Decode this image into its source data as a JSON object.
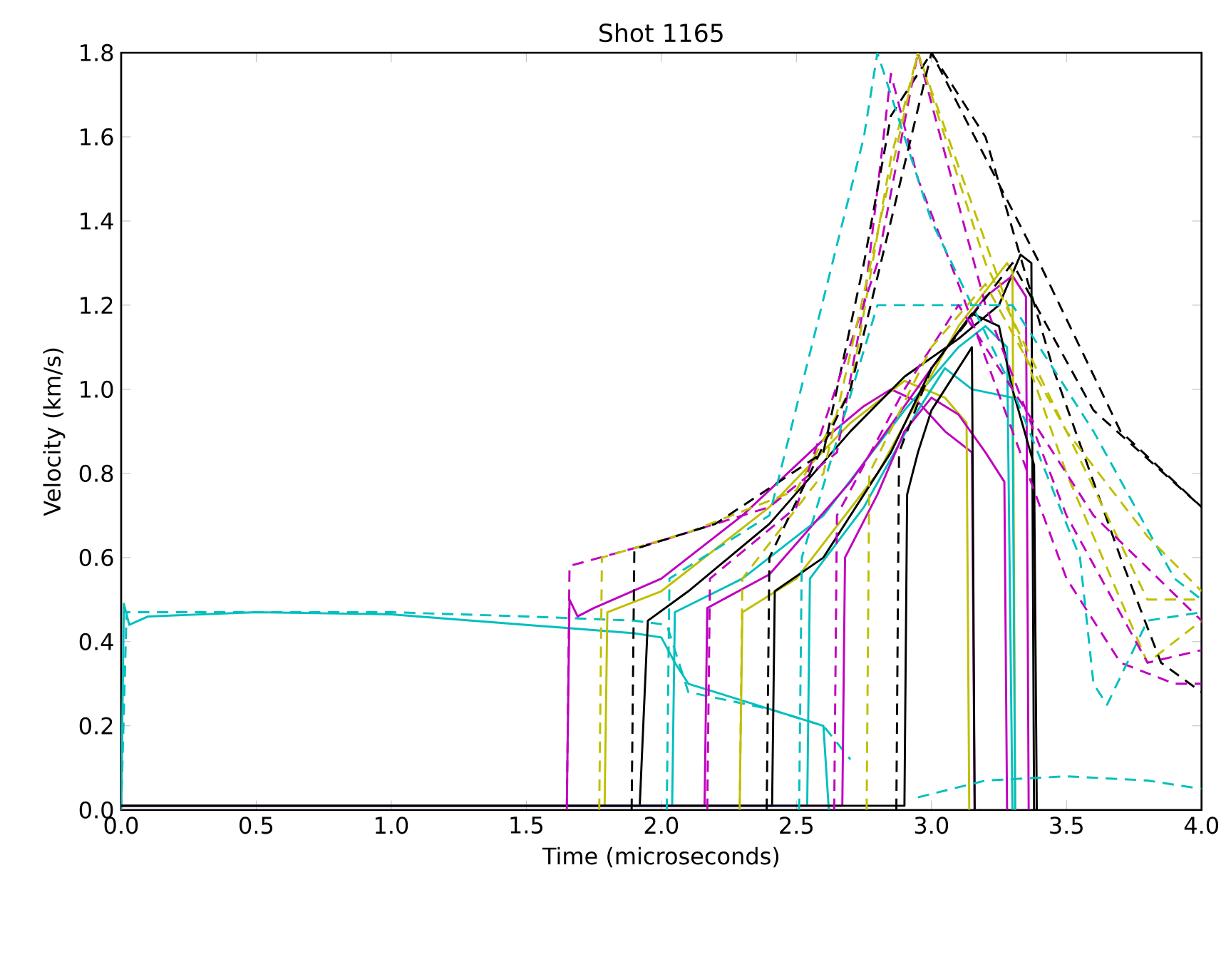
{
  "chart_data": {
    "type": "line",
    "title": "Shot 1165",
    "xlabel": "Time (microseconds)",
    "ylabel": "Velocity (km/s)",
    "xlim": [
      0,
      4
    ],
    "ylim": [
      0,
      1.8
    ],
    "xticks": [
      {
        "value": 0,
        "label": "0.0"
      },
      {
        "value": 0.5,
        "label": "0.5"
      },
      {
        "value": 1,
        "label": "1.0"
      },
      {
        "value": 1.5,
        "label": "1.5"
      },
      {
        "value": 2,
        "label": "2.0"
      },
      {
        "value": 2.5,
        "label": "2.5"
      },
      {
        "value": 3,
        "label": "3.0"
      },
      {
        "value": 3.5,
        "label": "3.5"
      },
      {
        "value": 4,
        "label": "4.0"
      }
    ],
    "yticks": [
      {
        "value": 0,
        "label": "0.0"
      },
      {
        "value": 0.2,
        "label": "0.2"
      },
      {
        "value": 0.4,
        "label": "0.4"
      },
      {
        "value": 0.6,
        "label": "0.6"
      },
      {
        "value": 0.8,
        "label": "0.8"
      },
      {
        "value": 1,
        "label": "1.0"
      },
      {
        "value": 1.2,
        "label": "1.2"
      },
      {
        "value": 1.4,
        "label": "1.4"
      },
      {
        "value": 1.6,
        "label": "1.6"
      },
      {
        "value": 1.8,
        "label": "1.8"
      }
    ],
    "grid": false,
    "marker": "none",
    "series": [
      {
        "color": "#00bfbf",
        "line_style": "dashed",
        "x": [
          0,
          0.02,
          0.5,
          1.0,
          1.5,
          1.9,
          2.02,
          2.1,
          2.4,
          2.6,
          2.7
        ],
        "values": [
          0.0,
          0.47,
          0.47,
          0.47,
          0.46,
          0.45,
          0.44,
          0.28,
          0.24,
          0.2,
          0.12
        ]
      },
      {
        "color": "#00bfbf",
        "line_style": "solid",
        "x": [
          0,
          0.01,
          0.03,
          0.1,
          0.5,
          1.0,
          1.5,
          1.9,
          2.0,
          2.05,
          2.1,
          2.3,
          2.6,
          2.62
        ],
        "values": [
          0.0,
          0.49,
          0.44,
          0.46,
          0.47,
          0.465,
          0.44,
          0.42,
          0.41,
          0.35,
          0.3,
          0.26,
          0.2,
          0.0
        ]
      },
      {
        "color": "#bf00bf",
        "line_style": "solid",
        "x": [
          0,
          1.65,
          1.66,
          1.69,
          1.75,
          2.0,
          2.3,
          2.6,
          2.75,
          2.85,
          2.95,
          3.05,
          3.15,
          3.16
        ],
        "values": [
          0.01,
          0.01,
          0.5,
          0.46,
          0.48,
          0.55,
          0.7,
          0.88,
          0.96,
          1.0,
          0.97,
          0.9,
          0.85,
          0.0
        ]
      },
      {
        "color": "#bfbf00",
        "line_style": "solid",
        "x": [
          0,
          1.79,
          1.8,
          2.0,
          2.4,
          2.7,
          2.9,
          3.05,
          3.13,
          3.14
        ],
        "values": [
          0.01,
          0.01,
          0.47,
          0.52,
          0.72,
          0.92,
          1.02,
          0.98,
          0.92,
          0.0
        ]
      },
      {
        "color": "#000000",
        "line_style": "solid",
        "x": [
          0,
          1.92,
          1.95,
          2.1,
          2.4,
          2.7,
          2.9,
          3.1,
          3.25,
          3.33,
          3.37,
          3.38
        ],
        "values": [
          0.01,
          0.01,
          0.45,
          0.52,
          0.68,
          0.9,
          1.03,
          1.12,
          1.2,
          1.32,
          1.3,
          0.0
        ]
      },
      {
        "color": "#00bfbf",
        "line_style": "solid",
        "x": [
          0,
          2.04,
          2.05,
          2.3,
          2.6,
          2.9,
          3.1,
          3.2,
          3.28,
          3.3
        ],
        "values": [
          0.01,
          0.01,
          0.47,
          0.55,
          0.7,
          0.95,
          1.1,
          1.15,
          1.1,
          0.0
        ]
      },
      {
        "color": "#bf00bf",
        "line_style": "solid",
        "x": [
          0,
          2.16,
          2.17,
          2.4,
          2.7,
          3.0,
          3.2,
          3.3,
          3.35,
          3.36
        ],
        "values": [
          0.01,
          0.01,
          0.48,
          0.56,
          0.78,
          1.05,
          1.22,
          1.27,
          1.22,
          0.0
        ]
      },
      {
        "color": "#bfbf00",
        "line_style": "solid",
        "x": [
          0,
          2.29,
          2.3,
          2.5,
          2.8,
          3.1,
          3.28,
          3.3,
          3.31
        ],
        "values": [
          0.01,
          0.01,
          0.47,
          0.55,
          0.8,
          1.15,
          1.3,
          1.28,
          0.0
        ]
      },
      {
        "color": "#000000",
        "line_style": "solid",
        "x": [
          0,
          2.41,
          2.42,
          2.6,
          2.85,
          3.0,
          3.15,
          3.25,
          3.3,
          3.38,
          3.39
        ],
        "values": [
          0.01,
          0.01,
          0.52,
          0.6,
          0.85,
          1.05,
          1.18,
          1.15,
          1.0,
          0.82,
          0.0
        ]
      },
      {
        "color": "#00bfbf",
        "line_style": "solid",
        "x": [
          0,
          2.54,
          2.55,
          2.75,
          2.95,
          3.05,
          3.15,
          3.3,
          3.31
        ],
        "values": [
          0.01,
          0.01,
          0.55,
          0.72,
          0.95,
          1.05,
          1.0,
          0.98,
          0.0
        ]
      },
      {
        "color": "#bf00bf",
        "line_style": "solid",
        "x": [
          0,
          2.67,
          2.68,
          2.8,
          2.9,
          3.0,
          3.1,
          3.2,
          3.27,
          3.28
        ],
        "values": [
          0.01,
          0.01,
          0.6,
          0.75,
          0.9,
          0.98,
          0.94,
          0.85,
          0.78,
          0.0
        ]
      },
      {
        "color": "#000000",
        "line_style": "solid",
        "x": [
          0,
          2.9,
          2.91,
          2.95,
          3.0,
          3.05,
          3.1,
          3.15,
          3.16
        ],
        "values": [
          0.01,
          0.01,
          0.75,
          0.85,
          0.95,
          1.0,
          1.05,
          1.1,
          0.0
        ]
      },
      {
        "color": "#bf00bf",
        "line_style": "dashed",
        "x": [
          1.65,
          1.66,
          2.0,
          2.4,
          2.65,
          2.75,
          2.85,
          2.95,
          3.1,
          3.3,
          3.5,
          3.7,
          3.9,
          4.0
        ],
        "values": [
          0.0,
          0.58,
          0.64,
          0.72,
          0.85,
          1.2,
          1.75,
          1.5,
          1.25,
          0.9,
          0.55,
          0.35,
          0.3,
          0.3
        ]
      },
      {
        "color": "#bfbf00",
        "line_style": "dashed",
        "x": [
          1.77,
          1.78,
          2.1,
          2.5,
          2.7,
          2.85,
          2.95,
          3.2,
          3.5,
          3.7,
          3.8,
          4.0
        ],
        "values": [
          0.0,
          0.6,
          0.66,
          0.76,
          1.0,
          1.55,
          1.8,
          1.35,
          0.8,
          0.5,
          0.35,
          0.45
        ]
      },
      {
        "color": "#000000",
        "line_style": "dashed",
        "x": [
          1.89,
          1.9,
          2.2,
          2.6,
          2.75,
          2.85,
          3.0,
          3.2,
          3.45,
          3.7,
          3.85,
          4.0
        ],
        "values": [
          0.0,
          0.62,
          0.68,
          0.85,
          1.3,
          1.65,
          1.8,
          1.6,
          1.05,
          0.6,
          0.35,
          0.28
        ]
      },
      {
        "color": "#00bfbf",
        "line_style": "dashed",
        "x": [
          2.02,
          2.03,
          2.4,
          2.75,
          2.8,
          3.0,
          3.3,
          3.55,
          3.6,
          3.65,
          3.8,
          4.0
        ],
        "values": [
          0.0,
          0.55,
          0.7,
          1.6,
          1.8,
          1.4,
          1.0,
          0.6,
          0.3,
          0.25,
          0.45,
          0.47
        ]
      },
      {
        "color": "#bf00bf",
        "line_style": "dashed",
        "x": [
          2.17,
          2.18,
          2.5,
          2.8,
          2.95,
          3.2,
          3.5,
          3.8,
          4.0
        ],
        "values": [
          0.0,
          0.55,
          0.72,
          1.3,
          1.8,
          1.2,
          0.7,
          0.35,
          0.38
        ]
      },
      {
        "color": "#bfbf00",
        "line_style": "dashed",
        "x": [
          2.29,
          2.3,
          2.6,
          2.95,
          3.2,
          3.5,
          3.8,
          4.0
        ],
        "values": [
          0.0,
          0.55,
          0.8,
          1.8,
          1.3,
          0.9,
          0.5,
          0.5
        ]
      },
      {
        "color": "#000000",
        "line_style": "dashed",
        "x": [
          2.39,
          2.4,
          2.7,
          3.0,
          3.4,
          3.7,
          4.0
        ],
        "values": [
          0.0,
          0.6,
          1.0,
          1.8,
          1.3,
          0.9,
          0.72
        ]
      },
      {
        "color": "#00bfbf",
        "line_style": "dashed",
        "x": [
          2.51,
          2.52,
          2.8,
          3.3,
          3.6,
          3.9,
          4.0
        ],
        "values": [
          0.0,
          0.6,
          1.2,
          1.2,
          0.9,
          0.55,
          0.5
        ]
      },
      {
        "color": "#bf00bf",
        "line_style": "dashed",
        "x": [
          2.64,
          2.65,
          2.9,
          3.1,
          3.3,
          3.6,
          4.0
        ],
        "values": [
          0.0,
          0.7,
          1.0,
          1.2,
          1.0,
          0.7,
          0.45
        ]
      },
      {
        "color": "#bfbf00",
        "line_style": "dashed",
        "x": [
          2.76,
          2.77,
          3.0,
          3.2,
          3.5,
          3.8,
          4.0
        ],
        "values": [
          0.0,
          0.8,
          1.1,
          1.25,
          0.9,
          0.65,
          0.52
        ]
      },
      {
        "color": "#000000",
        "line_style": "dashed",
        "x": [
          2.87,
          2.88,
          3.0,
          3.3,
          3.6,
          4.0
        ],
        "values": [
          0.0,
          0.85,
          1.05,
          1.3,
          0.95,
          0.72
        ]
      },
      {
        "color": "#00bfbf",
        "line_style": "dashed",
        "x": [
          2.95,
          3.2,
          3.5,
          3.8,
          4.0
        ],
        "values": [
          0.03,
          0.07,
          0.08,
          0.07,
          0.05
        ]
      }
    ]
  }
}
